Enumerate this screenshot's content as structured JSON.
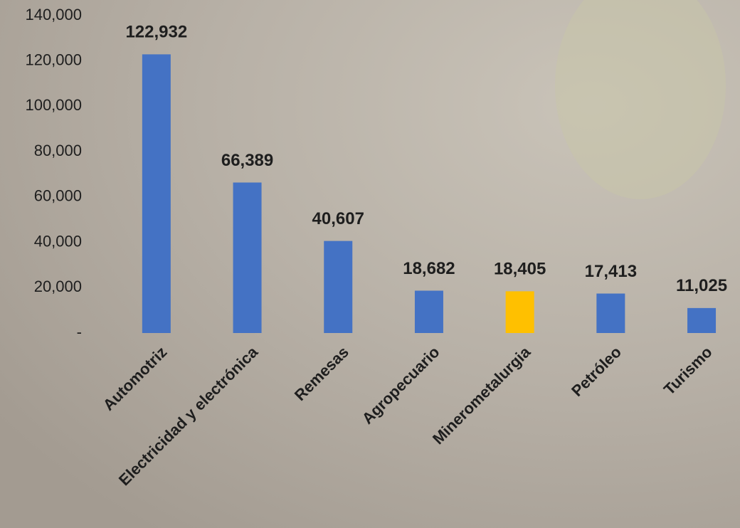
{
  "chart_data": {
    "type": "bar",
    "categories": [
      "Automotriz",
      "Electricidad y electrónica",
      "Remesas",
      "Agropecuario",
      "Minerometalurgia",
      "Petróleo",
      "Turismo"
    ],
    "values": [
      122932,
      66389,
      40607,
      18682,
      18405,
      17413,
      11025
    ],
    "value_labels": [
      "122,932",
      "66,389",
      "40,607",
      "18,682",
      "18,405",
      "17,413",
      "11,025"
    ],
    "colors": [
      "#4472c4",
      "#4472c4",
      "#4472c4",
      "#4472c4",
      "#ffc000",
      "#4472c4",
      "#4472c4"
    ],
    "ylim": [
      0,
      140000
    ],
    "yticks": [
      {
        "value": 0,
        "label": "-"
      },
      {
        "value": 20000,
        "label": "20,000"
      },
      {
        "value": 40000,
        "label": "40,000"
      },
      {
        "value": 60000,
        "label": "60,000"
      },
      {
        "value": 80000,
        "label": "80,000"
      },
      {
        "value": 100000,
        "label": "100,000"
      },
      {
        "value": 120000,
        "label": "120,000"
      },
      {
        "value": 140000,
        "label": "140,000"
      }
    ],
    "grid": false
  }
}
